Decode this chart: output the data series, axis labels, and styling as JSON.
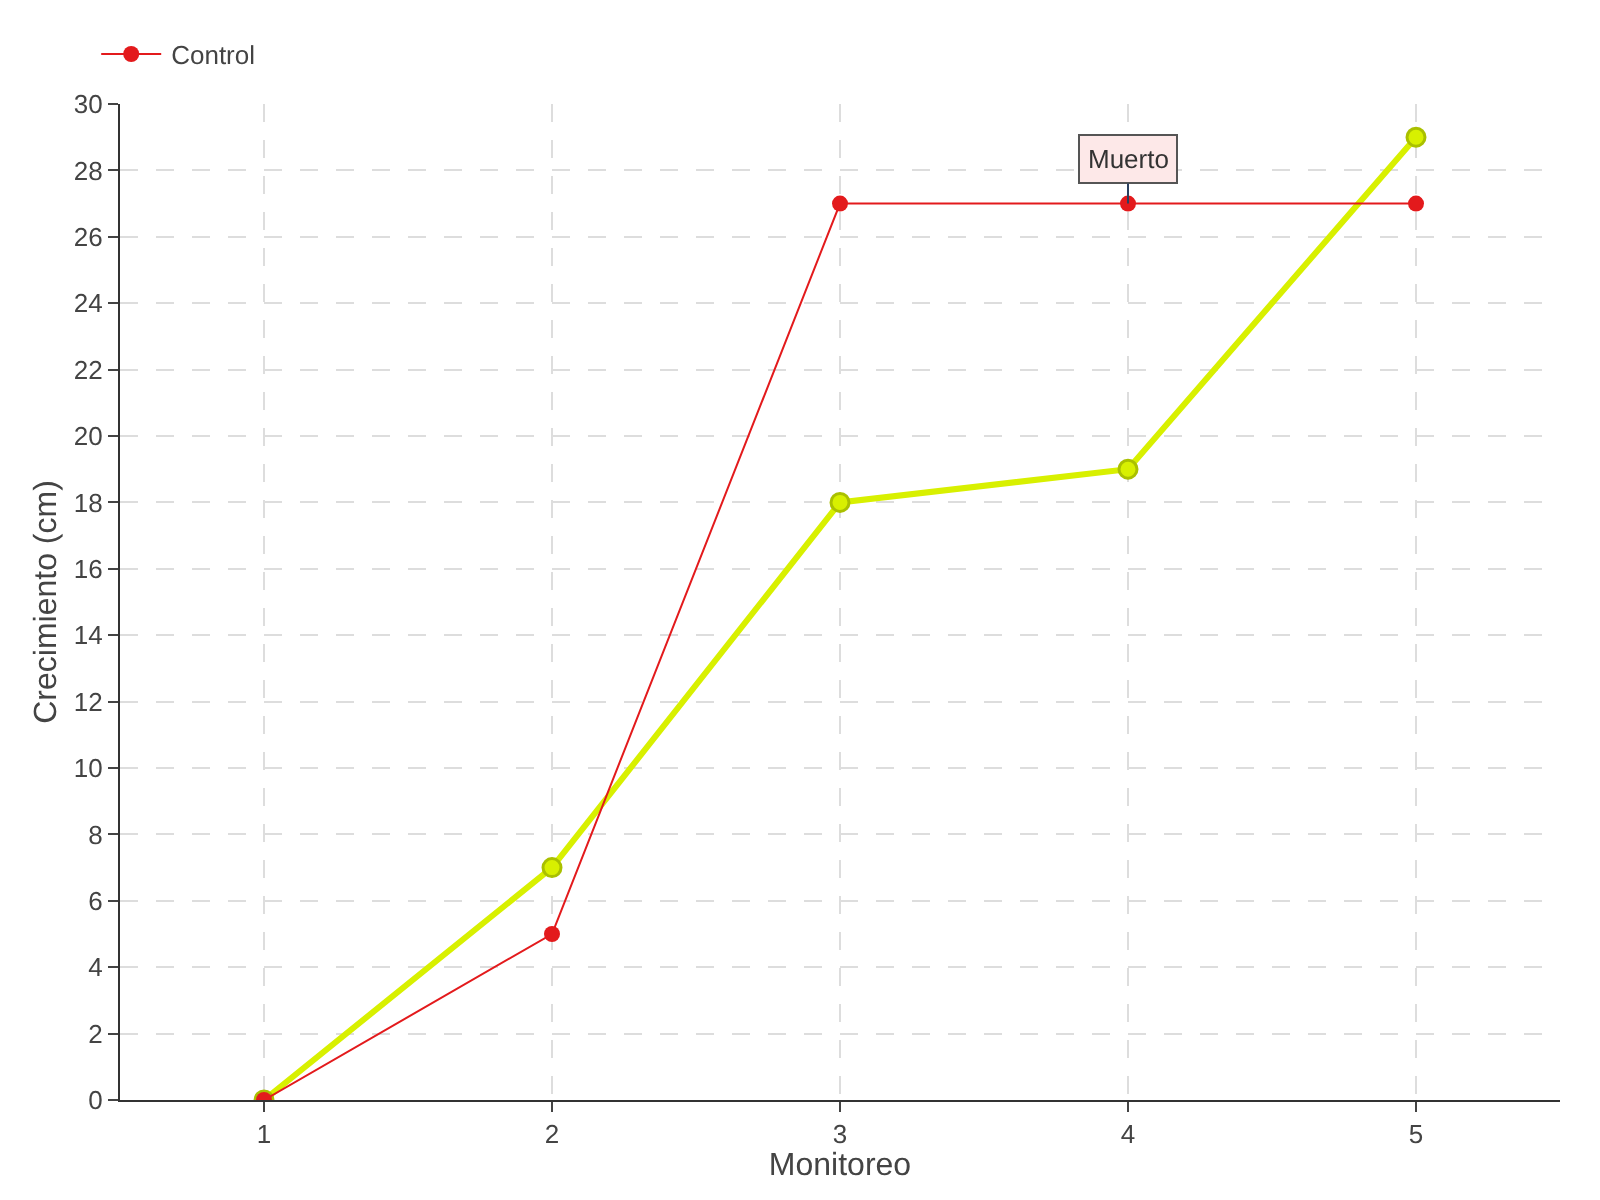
{
  "chart_data": {
    "type": "line",
    "xlabel": "Monitoreo",
    "ylabel": "Crecimiento (cm)",
    "x": [
      1,
      2,
      3,
      4,
      5
    ],
    "series": [
      {
        "color": "#d8f000",
        "values": [
          0,
          7,
          18,
          19,
          29
        ]
      },
      {
        "name": "Control",
        "color": "#e31a1c",
        "values": [
          0,
          5,
          27,
          27,
          27
        ]
      }
    ],
    "xlim": [
      0.5,
      5.5
    ],
    "xticks": [
      1,
      2,
      3,
      4,
      5
    ],
    "ylim": [
      0,
      30
    ],
    "yticks": [
      0,
      2,
      4,
      6,
      8,
      10,
      12,
      14,
      16,
      18,
      20,
      22,
      24,
      26,
      28,
      30
    ],
    "annotations": [
      {
        "text": "Muerto",
        "x": 4,
        "y": 27
      }
    ],
    "grid": true,
    "legend": "top left",
    "marker": "circle",
    "line_style": "solid"
  }
}
